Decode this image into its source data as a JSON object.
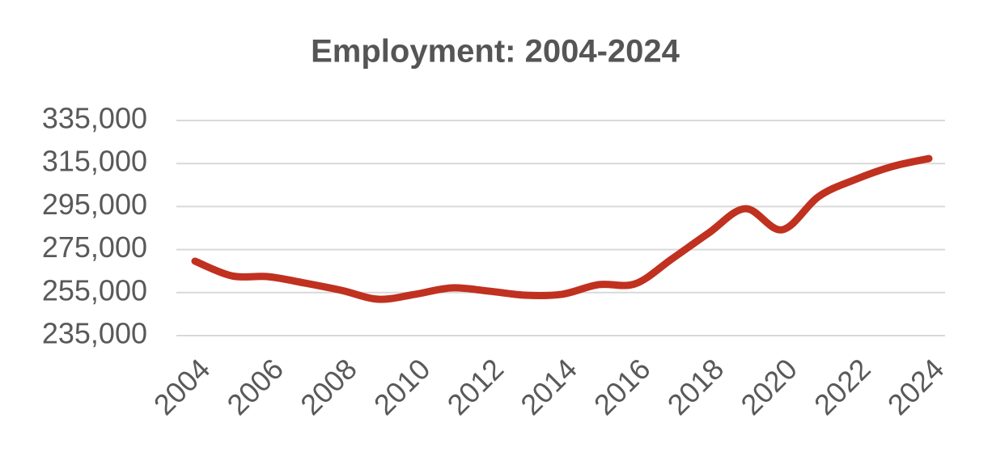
{
  "chart_data": {
    "type": "line",
    "title": "Employment: 2004-2024",
    "x": [
      2004,
      2005,
      2006,
      2007,
      2008,
      2009,
      2010,
      2011,
      2012,
      2013,
      2014,
      2015,
      2016,
      2017,
      2018,
      2019,
      2020,
      2021,
      2022,
      2023,
      2024
    ],
    "series": [
      {
        "color": "#c0311f",
        "values": [
          269600,
          262800,
          262400,
          259400,
          256000,
          251900,
          254200,
          257200,
          255700,
          253800,
          254200,
          258700,
          259100,
          270700,
          282700,
          294000,
          284200,
          299700,
          307600,
          313600,
          317300
        ]
      }
    ],
    "xlim": [
      2004,
      2024
    ],
    "xticks": [
      2004,
      2006,
      2008,
      2010,
      2012,
      2014,
      2016,
      2018,
      2020,
      2022,
      2024
    ],
    "ylim": [
      235000,
      335000
    ],
    "yticks": [
      {
        "value": 235000,
        "label": "235,000"
      },
      {
        "value": 255000,
        "label": "255,000"
      },
      {
        "value": 275000,
        "label": "275,000"
      },
      {
        "value": 295000,
        "label": "295,000"
      },
      {
        "value": 315000,
        "label": "315,000"
      },
      {
        "value": 335000,
        "label": "335,000"
      }
    ],
    "grid": true
  }
}
